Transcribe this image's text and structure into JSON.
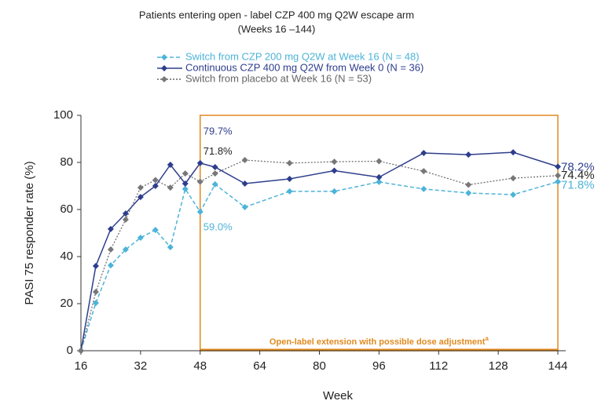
{
  "chart_data": {
    "type": "line",
    "title": "Patients entering open - label CZP 400 mg Q2W escape arm",
    "subtitle": "(Weeks 16 –144)",
    "x_label": "Week",
    "y_label": "PASI 75 responder rate (%)",
    "x": [
      16,
      20,
      24,
      28,
      32,
      36,
      40,
      44,
      48,
      52,
      60,
      72,
      84,
      96,
      108,
      120,
      132,
      144
    ],
    "series": [
      {
        "name": "Switch from CZP 200 mg Q2W at Week 16 (N = 48)",
        "color": "#4db3d8",
        "line_style": "dashed",
        "values": [
          0,
          20.3,
          36.3,
          43,
          48,
          51.3,
          44,
          68.7,
          59.0,
          70.7,
          61,
          67.7,
          67.7,
          71.7,
          68.7,
          67,
          66.3,
          71.8
        ],
        "value_labels": [
          null,
          null,
          null,
          null,
          null,
          null,
          null,
          null,
          "59.0%",
          null,
          null,
          null,
          null,
          null,
          null,
          null,
          null,
          "71.8%"
        ]
      },
      {
        "name": "Continuous CZP 400 mg Q2W from Week 0 (N = 36)",
        "color": "#2e3e8c",
        "line_style": "solid",
        "values": [
          0,
          36,
          51.7,
          58.3,
          65.3,
          70,
          79,
          71,
          79.7,
          78,
          71,
          73,
          76.5,
          73.7,
          84,
          83.3,
          84.3,
          78.2
        ],
        "value_labels": [
          null,
          null,
          null,
          null,
          null,
          null,
          null,
          null,
          "79.7%",
          null,
          null,
          null,
          null,
          null,
          null,
          null,
          null,
          "78.2%"
        ]
      },
      {
        "name": "Switch from placebo at Week 16 (N = 53)",
        "color": "#666666",
        "line_style": "dotted",
        "values": [
          0,
          25,
          43,
          55.7,
          69.3,
          72.5,
          69.3,
          75.3,
          71.8,
          75.3,
          81,
          79.7,
          80.3,
          80.5,
          76.3,
          70.5,
          73.3,
          74.4
        ],
        "value_labels": [
          null,
          null,
          null,
          null,
          null,
          null,
          null,
          null,
          "71.8%",
          null,
          null,
          null,
          null,
          null,
          null,
          null,
          null,
          "74.4%"
        ]
      }
    ],
    "xlim": [
      16,
      144
    ],
    "xticks": [
      16,
      32,
      48,
      64,
      80,
      96,
      112,
      128,
      144
    ],
    "ylim": [
      0,
      100
    ],
    "yticks": [
      0,
      20,
      40,
      60,
      80,
      100
    ],
    "region": {
      "x": [
        48,
        144
      ],
      "color": "#e08a1e",
      "label": "Open-label extension with possible dose adjustment",
      "label_superscript": "a"
    }
  }
}
